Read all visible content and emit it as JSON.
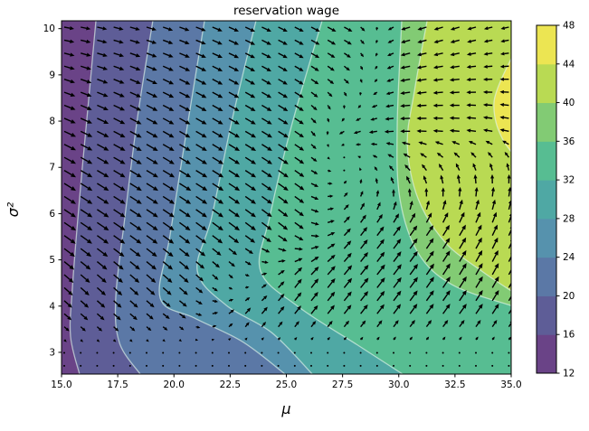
{
  "figure": {
    "title": "reservation wage"
  },
  "chart_data": {
    "type": "contour",
    "title": "reservation wage",
    "xlabel": "μ",
    "ylabel": "σ²",
    "x_range": [
      15,
      35
    ],
    "y_range": [
      2.53,
      10.17
    ],
    "grid": false,
    "x_tick_values": [
      15,
      17.5,
      20,
      22.5,
      25,
      27.5,
      30,
      32.5,
      35
    ],
    "x_tick_labels": [
      "15.0",
      "17.5",
      "20.0",
      "22.5",
      "25.0",
      "27.5",
      "30.0",
      "32.5",
      "35.0"
    ],
    "y_tick_values": [
      3,
      4,
      5,
      6,
      7,
      8,
      9,
      10
    ],
    "y_tick_labels": [
      "3",
      "4",
      "5",
      "6",
      "7",
      "8",
      "9",
      "10"
    ],
    "colorbar": {
      "position": "right",
      "tick_values": [
        12,
        16,
        20,
        24,
        28,
        32,
        36,
        40,
        44,
        48
      ],
      "tick_labels": [
        "12",
        "16",
        "20",
        "24",
        "28",
        "32",
        "36",
        "40",
        "44",
        "48"
      ]
    },
    "levels": [
      12,
      16,
      20,
      24,
      28,
      32,
      36,
      40,
      44,
      48
    ],
    "band_colors": [
      "#6a4387",
      "#5e5d97",
      "#5b78a6",
      "#5692ad",
      "#4fa8a4",
      "#57bd92",
      "#82cb74",
      "#b9da53",
      "#ece552"
    ],
    "contour_line_color": "rgba(225,244,233,0.65)",
    "arrow_color": "#000000",
    "contour_lines": [
      {
        "level": 16,
        "closed": false,
        "points": [
          [
            16.53,
            10.17
          ],
          [
            16.17,
            8.27
          ],
          [
            15.8,
            6.32
          ],
          [
            15.48,
            4.37
          ],
          [
            15.4,
            3.35
          ],
          [
            15.8,
            2.53
          ]
        ]
      },
      {
        "level": 20,
        "closed": false,
        "points": [
          [
            19.06,
            10.17
          ],
          [
            18.38,
            8.08
          ],
          [
            17.82,
            5.93
          ],
          [
            17.41,
            4.17
          ],
          [
            17.58,
            3.2
          ],
          [
            18.5,
            2.53
          ]
        ]
      },
      {
        "level": 24,
        "closed": false,
        "points": [
          [
            21.36,
            10.17
          ],
          [
            20.59,
            7.88
          ],
          [
            19.83,
            5.54
          ],
          [
            19.39,
            4.17
          ],
          [
            20.92,
            3.74
          ],
          [
            23.05,
            3.23
          ],
          [
            24.94,
            2.53
          ]
        ]
      },
      {
        "level": 28,
        "closed": false,
        "points": [
          [
            23.65,
            10.17
          ],
          [
            22.61,
            8.08
          ],
          [
            21.68,
            5.93
          ],
          [
            21.04,
            4.76
          ],
          [
            22.32,
            4.02
          ],
          [
            24.34,
            3.43
          ],
          [
            26.15,
            2.53
          ]
        ]
      },
      {
        "level": 32,
        "closed": false,
        "points": [
          [
            26.59,
            10.17
          ],
          [
            25.22,
            7.88
          ],
          [
            24.26,
            5.93
          ],
          [
            23.85,
            4.76
          ],
          [
            25.55,
            3.98
          ],
          [
            28.16,
            3.16
          ],
          [
            30.17,
            2.53
          ]
        ]
      },
      {
        "level": 36,
        "closed": false,
        "points": [
          [
            30.13,
            10.17
          ],
          [
            29.93,
            7.88
          ],
          [
            30.05,
            6.32
          ],
          [
            30.86,
            5.15
          ],
          [
            32.38,
            4.46
          ],
          [
            35.0,
            4.01
          ]
        ]
      },
      {
        "level": 40,
        "closed": false,
        "points": [
          [
            31.26,
            10.17
          ],
          [
            30.7,
            8.66
          ],
          [
            30.38,
            7.49
          ],
          [
            30.86,
            6.32
          ],
          [
            32.06,
            5.38
          ],
          [
            33.68,
            4.76
          ],
          [
            35.0,
            4.33
          ]
        ]
      },
      {
        "level": 44,
        "closed": true,
        "points": [
          [
            35.0,
            9.35
          ],
          [
            34.52,
            8.86
          ],
          [
            34.24,
            8.43
          ],
          [
            34.32,
            7.98
          ],
          [
            34.64,
            7.59
          ],
          [
            35.0,
            7.34
          ]
        ]
      }
    ],
    "vector_field": {
      "description": "quiver arrows; u right / v down, pixel units, sampled on fractional grid of plot area",
      "sample_fx": [
        0.014,
        0.139,
        0.264,
        0.388,
        0.513,
        0.638,
        0.763,
        0.887,
        0.984
      ],
      "sample_fy": [
        0.031,
        0.171,
        0.312,
        0.453,
        0.593,
        0.734,
        0.836,
        0.926,
        0.977
      ],
      "u": [
        [
          11,
          11,
          11,
          11,
          10,
          9,
          -10,
          -10,
          -9
        ],
        [
          12,
          12,
          12,
          11,
          10,
          5,
          -11,
          -11,
          -10
        ],
        [
          13,
          13,
          12,
          12,
          11,
          -7,
          -11,
          -11,
          -10
        ],
        [
          13,
          13,
          13,
          12,
          11,
          2,
          -5,
          -2,
          0
        ],
        [
          13,
          13,
          12,
          12,
          10,
          7,
          8,
          7,
          5
        ],
        [
          10,
          10,
          10,
          3,
          8,
          9,
          9,
          8,
          7
        ],
        [
          8,
          8,
          7,
          6,
          7,
          8,
          8,
          8,
          7
        ],
        [
          1,
          1,
          1,
          1,
          1,
          1,
          1,
          1,
          1
        ],
        [
          0.5,
          0.5,
          0.5,
          0.5,
          0.5,
          0.5,
          0.5,
          0.5,
          0.5
        ]
      ],
      "v": [
        [
          2,
          3,
          4,
          5,
          5,
          5,
          3,
          3,
          2
        ],
        [
          4,
          5,
          6,
          6,
          6,
          5,
          2,
          1,
          0
        ],
        [
          6,
          7,
          7,
          7,
          7,
          3,
          0,
          -1,
          -2
        ],
        [
          8,
          8,
          8,
          8,
          8,
          -4,
          -8,
          -10,
          -10
        ],
        [
          9,
          9,
          9,
          9,
          8,
          -9,
          -11,
          -12,
          -12
        ],
        [
          9,
          9,
          9,
          3,
          -10,
          -11,
          -12,
          -13,
          -13
        ],
        [
          7,
          7,
          5,
          -7,
          -9,
          -10,
          -11,
          -11,
          -11
        ],
        [
          1,
          1,
          1,
          -1,
          -1,
          -1,
          -1,
          -1,
          -1
        ],
        [
          0,
          0,
          0,
          0,
          0,
          0,
          0,
          0,
          0
        ]
      ],
      "grid_cols": 28,
      "grid_rows": 27
    }
  }
}
